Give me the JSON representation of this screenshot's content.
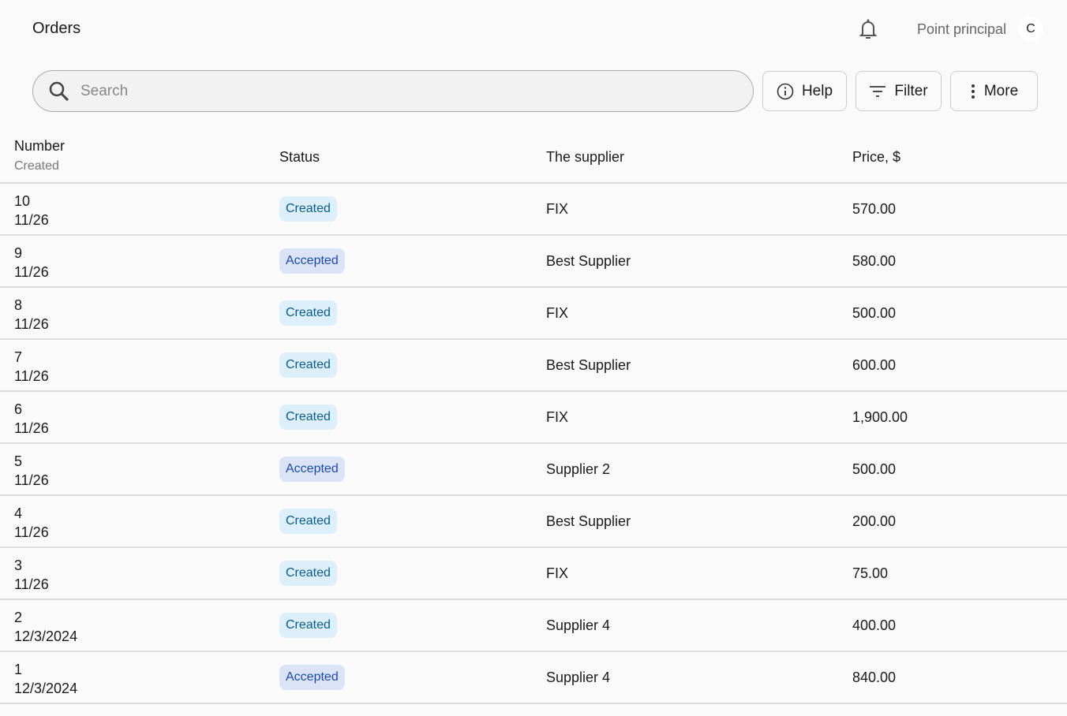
{
  "header": {
    "title": "Orders",
    "user": "Point principal",
    "avatar": "C"
  },
  "toolbar": {
    "search_placeholder": "Search",
    "help": "Help",
    "filter": "Filter",
    "more": "More"
  },
  "table": {
    "columns": {
      "number": "Number",
      "created": "Created",
      "status": "Status",
      "supplier": "The supplier",
      "price": "Price, $"
    },
    "rows": [
      {
        "number": "10",
        "date": "11/26",
        "status": "Created",
        "supplier": "FIX",
        "price": "570.00"
      },
      {
        "number": "9",
        "date": "11/26",
        "status": "Accepted",
        "supplier": "Best Supplier",
        "price": "580.00"
      },
      {
        "number": "8",
        "date": "11/26",
        "status": "Created",
        "supplier": "FIX",
        "price": "500.00"
      },
      {
        "number": "7",
        "date": "11/26",
        "status": "Created",
        "supplier": "Best Supplier",
        "price": "600.00"
      },
      {
        "number": "6",
        "date": "11/26",
        "status": "Created",
        "supplier": "FIX",
        "price": "1,900.00"
      },
      {
        "number": "5",
        "date": "11/26",
        "status": "Accepted",
        "supplier": "Supplier 2",
        "price": "500.00"
      },
      {
        "number": "4",
        "date": "11/26",
        "status": "Created",
        "supplier": "Best Supplier",
        "price": "200.00"
      },
      {
        "number": "3",
        "date": "11/26",
        "status": "Created",
        "supplier": "FIX",
        "price": "75.00"
      },
      {
        "number": "2",
        "date": "12/3/2024",
        "status": "Created",
        "supplier": "Supplier 4",
        "price": "400.00"
      },
      {
        "number": "1",
        "date": "12/3/2024",
        "status": "Accepted",
        "supplier": "Supplier 4",
        "price": "840.00"
      }
    ]
  },
  "colors": {
    "created_bg": "#dceffb",
    "created_text": "#0b5c8c",
    "accepted_bg": "#dbe3f6",
    "accepted_text": "#1d4aa8"
  }
}
